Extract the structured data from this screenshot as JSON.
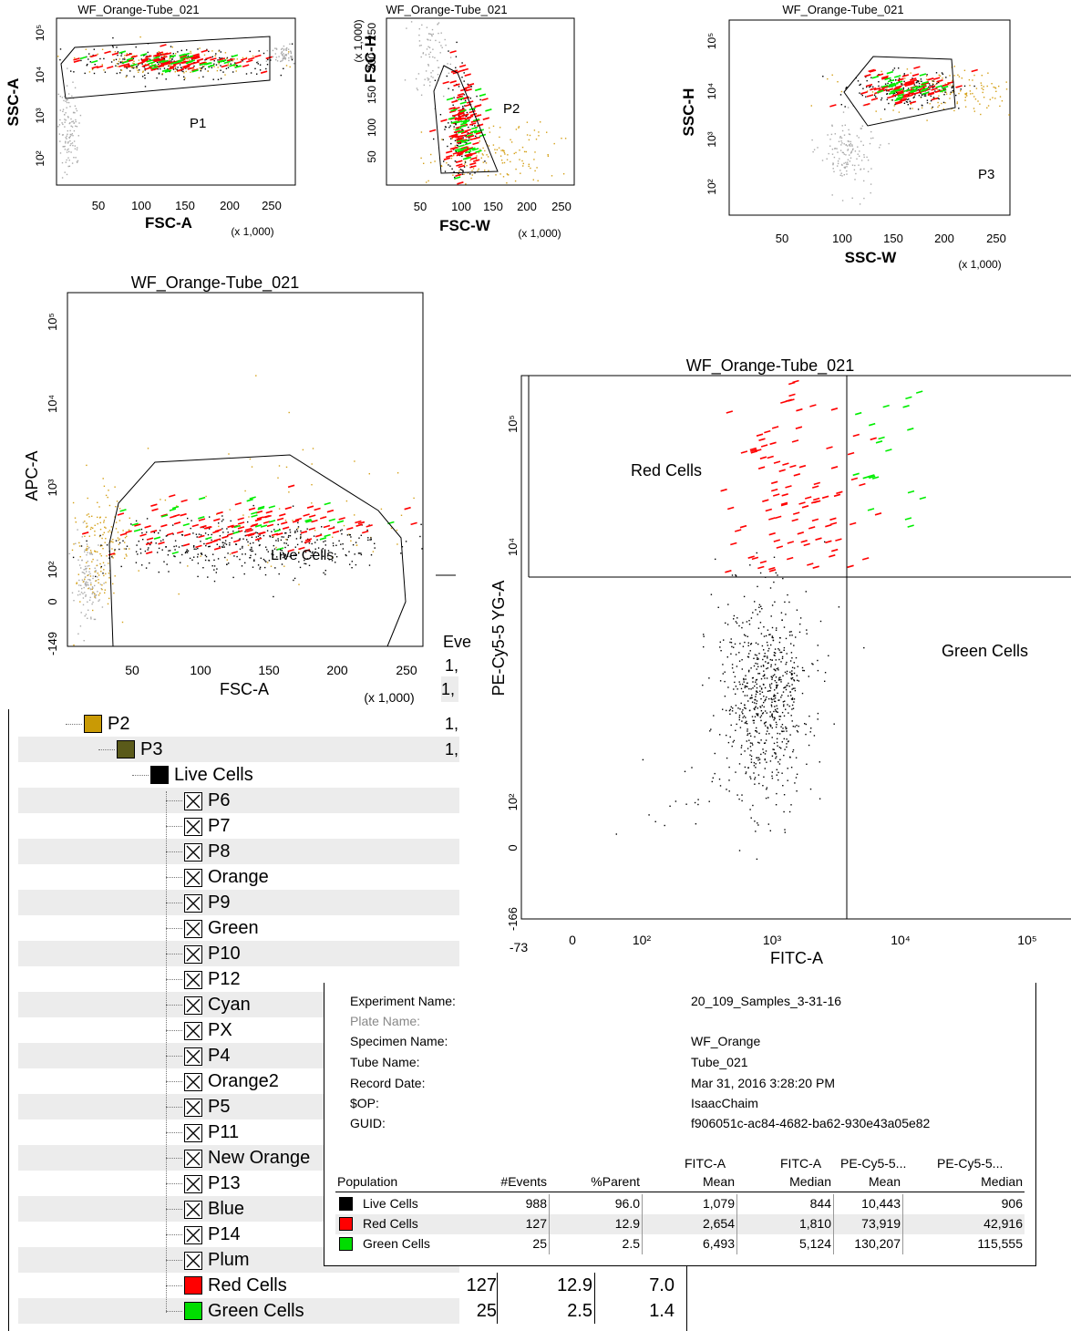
{
  "colors": {
    "p1": "#7f7f7f",
    "p2": "#f0b400",
    "p3": "#5a5a1a",
    "live": "#000000",
    "red": "#ff0000",
    "green": "#00ee00",
    "yellow": "#d4a017",
    "gray": "#aaaaaa"
  },
  "chart_data": [
    {
      "type": "scatter",
      "title": "WF_Orange-Tube_021",
      "xlabel": "FSC-A",
      "ylabel": "SSC-A",
      "x_multiplier": "(x 1,000)",
      "x_ticks": [
        "50",
        "100",
        "150",
        "200",
        "250"
      ],
      "y_ticks": [
        "10^2",
        "10^3",
        "10^4",
        "10^5"
      ],
      "gate": "P1",
      "xlim": [
        0,
        262
      ],
      "ylog": true
    },
    {
      "type": "scatter",
      "title": "WF_Orange-Tube_021",
      "xlabel": "FSC-W",
      "ylabel": "FSC-H",
      "x_multiplier": "(x 1,000)",
      "y_multiplier": "(x 1,000)",
      "x_ticks": [
        "50",
        "100",
        "150",
        "200",
        "250"
      ],
      "y_ticks": [
        "50",
        "100",
        "150",
        "200",
        "250"
      ],
      "gate": "P2",
      "xlim": [
        0,
        262
      ],
      "ylim": [
        0,
        262
      ]
    },
    {
      "type": "scatter",
      "title": "WF_Orange-Tube_021",
      "xlabel": "SSC-W",
      "ylabel": "SSC-H",
      "x_multiplier": "(x 1,000)",
      "x_ticks": [
        "50",
        "100",
        "150",
        "200",
        "250"
      ],
      "y_ticks": [
        "10^2",
        "10^3",
        "10^4",
        "10^5"
      ],
      "gate": "P3",
      "xlim": [
        0,
        262
      ],
      "ylog": true
    },
    {
      "type": "scatter",
      "title": "WF_Orange-Tube_021",
      "xlabel": "FSC-A",
      "ylabel": "APC-A",
      "x_multiplier": "(x 1,000)",
      "x_ticks": [
        "50",
        "100",
        "150",
        "200",
        "250"
      ],
      "y_ticks": [
        "-149",
        "0",
        "10^2",
        "10^3",
        "10^4",
        "10^5"
      ],
      "gate": "Live Cells",
      "xlim": [
        0,
        262
      ],
      "ylog": true
    },
    {
      "type": "scatter",
      "title": "WF_Orange-Tube_021",
      "xlabel": "FITC-A",
      "ylabel": "PE-Cy5-5 YG-A",
      "x_ticks": [
        "-73",
        "0",
        "10^2",
        "10^3",
        "10^4",
        "10^5"
      ],
      "y_ticks": [
        "-166",
        "0",
        "10^2",
        "10^3",
        "10^4",
        "10^5"
      ],
      "gates": [
        "Red Cells",
        "Green Cells"
      ],
      "xlog": true,
      "ylog": true
    }
  ],
  "hierarchy": {
    "header_cut": "Eve",
    "cut_values": [
      "1,",
      "1,",
      "1,",
      "1,"
    ],
    "rows": [
      {
        "label": "P2",
        "kind": "swatch",
        "color": "#c99a05"
      },
      {
        "label": "P3",
        "kind": "swatch",
        "color": "#5a5a1a"
      },
      {
        "label": "Live Cells",
        "kind": "swatch",
        "color": "#000000"
      },
      {
        "label": "P6",
        "kind": "x"
      },
      {
        "label": "P7",
        "kind": "x"
      },
      {
        "label": "P8",
        "kind": "x"
      },
      {
        "label": "Orange",
        "kind": "x"
      },
      {
        "label": "P9",
        "kind": "x"
      },
      {
        "label": "Green",
        "kind": "x"
      },
      {
        "label": "P10",
        "kind": "x"
      },
      {
        "label": "P12",
        "kind": "x"
      },
      {
        "label": "Cyan",
        "kind": "x"
      },
      {
        "label": "PX",
        "kind": "x"
      },
      {
        "label": "P4",
        "kind": "x"
      },
      {
        "label": "Orange2",
        "kind": "x"
      },
      {
        "label": "P5",
        "kind": "x"
      },
      {
        "label": "P11",
        "kind": "x"
      },
      {
        "label": "New Orange",
        "kind": "x"
      },
      {
        "label": "P13",
        "kind": "x"
      },
      {
        "label": "Blue",
        "kind": "x"
      },
      {
        "label": "P14",
        "kind": "x"
      },
      {
        "label": "Plum",
        "kind": "x"
      },
      {
        "label": "Red Cells",
        "kind": "swatch",
        "color": "#ff0000"
      },
      {
        "label": "Green Cells",
        "kind": "swatch",
        "color": "#00dd00"
      }
    ],
    "red_cells_values": [
      "127",
      "12.9",
      "7.0"
    ],
    "green_cells_values": [
      "25",
      "2.5",
      "1.4"
    ]
  },
  "stats": {
    "experiment_name_label": "Experiment Name:",
    "experiment_name": "20_109_Samples_3-31-16",
    "plate_name_label": "Plate Name:",
    "specimen_name_label": "Specimen Name:",
    "specimen_name": "WF_Orange",
    "tube_name_label": "Tube Name:",
    "tube_name": "Tube_021",
    "record_date_label": "Record Date:",
    "record_date": "Mar 31, 2016 3:28:20 PM",
    "sop_label": "$OP:",
    "sop": "IsaacChaim",
    "guid_label": "GUID:",
    "guid": "f906051c-ac84-4682-ba62-930e43a05e82",
    "col_fitc_top": "FITC-A",
    "col_fitc2_top": "FITC-A",
    "col_pe1_top": "PE-Cy5-5...",
    "col_pe2_top": "PE-Cy5-5...",
    "col_population": "Population",
    "col_events": "#Events",
    "col_parent": "%Parent",
    "col_mean": "Mean",
    "col_median": "Median",
    "col_mean2": "Mean",
    "col_median2": "Median",
    "rows": [
      {
        "population": "Live Cells",
        "color": "#000000",
        "events": "988",
        "parent": "96.0",
        "fitc_mean": "1,079",
        "fitc_median": "844",
        "pe_mean": "10,443",
        "pe_median": "906"
      },
      {
        "population": "Red Cells",
        "color": "#ff0000",
        "events": "127",
        "parent": "12.9",
        "fitc_mean": "2,654",
        "fitc_median": "1,810",
        "pe_mean": "73,919",
        "pe_median": "42,916"
      },
      {
        "population": "Green Cells",
        "color": "#00dd00",
        "events": "25",
        "parent": "2.5",
        "fitc_mean": "6,493",
        "fitc_median": "5,124",
        "pe_mean": "130,207",
        "pe_median": "115,555"
      }
    ]
  }
}
